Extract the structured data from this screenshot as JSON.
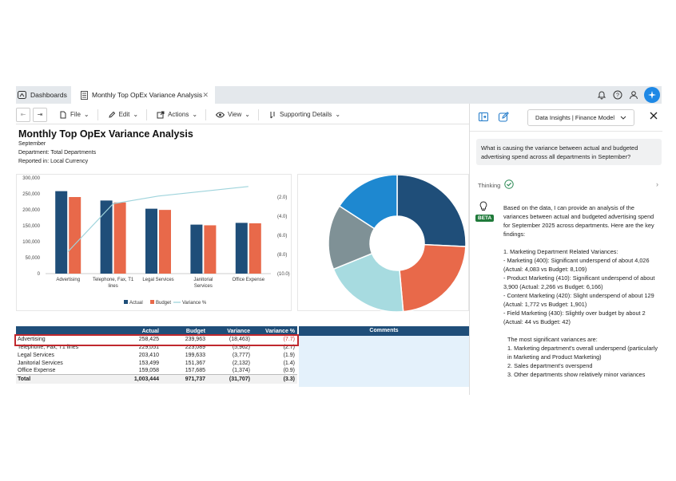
{
  "tabs": {
    "dashboards": "Dashboards",
    "active": "Monthly Top OpEx Variance Analysis"
  },
  "toolbar": {
    "file": "File",
    "edit": "Edit",
    "actions": "Actions",
    "view": "View",
    "supporting": "Supporting Details"
  },
  "report": {
    "title": "Monthly Top OpEx Variance Analysis",
    "period": "September",
    "department": "Department: Total Departments",
    "currency": "Reported in: Local Currency"
  },
  "chart_data": [
    {
      "type": "bar",
      "categories": [
        "Advertising",
        "Telephone, Fax, T1 lines",
        "Legal Services",
        "Janitorial Services",
        "Office Expense"
      ],
      "series": [
        {
          "name": "Actual",
          "values": [
            258425,
            229051,
            203410,
            153499,
            159058
          ],
          "color": "#1f4e79"
        },
        {
          "name": "Budget",
          "values": [
            239963,
            223089,
            199633,
            151367,
            157685
          ],
          "color": "#e8694a"
        },
        {
          "name": "Variance %",
          "type": "line",
          "axis": "right",
          "values": [
            -7.7,
            -2.7,
            -1.9,
            -1.4,
            -0.9
          ],
          "color": "#9fd4dc"
        }
      ],
      "y_ticks": [
        "300,000",
        "250,000",
        "200,000",
        "150,000",
        "100,000",
        "50,000",
        "0"
      ],
      "ylim": [
        0,
        300000
      ],
      "y2_ticks": [
        "(2.0)",
        "(4.0)",
        "(6.0)",
        "(8.0)",
        "(10.0)"
      ],
      "y2lim": [
        0,
        -10
      ],
      "legend_position": "bottom"
    },
    {
      "type": "pie",
      "donut": true,
      "values": [
        258425,
        229051,
        203410,
        153499,
        159058
      ],
      "colors": [
        "#1f4e79",
        "#e8694a",
        "#a7dbe0",
        "#7f9196",
        "#1e88d0"
      ]
    }
  ],
  "table": {
    "headers": [
      "",
      "Actual",
      "Budget",
      "Variance",
      "Variance %"
    ],
    "rows": [
      {
        "name": "Advertising",
        "actual": "258,425",
        "budget": "239,963",
        "variance": "(18,463)",
        "pct": "(7.7)"
      },
      {
        "name": "Telephone, Fax, T1 lines",
        "actual": "229,051",
        "budget": "223,089",
        "variance": "(5,962)",
        "pct": "(2.7)"
      },
      {
        "name": "Legal Services",
        "actual": "203,410",
        "budget": "199,633",
        "variance": "(3,777)",
        "pct": "(1.9)"
      },
      {
        "name": "Janitorial Services",
        "actual": "153,499",
        "budget": "151,367",
        "variance": "(2,132)",
        "pct": "(1.4)"
      },
      {
        "name": "Office Expense",
        "actual": "159,058",
        "budget": "157,685",
        "variance": "(1,374)",
        "pct": "(0.9)"
      }
    ],
    "total": {
      "name": "Total",
      "actual": "1,003,444",
      "budget": "971,737",
      "variance": "(31,707)",
      "pct": "(3.3)"
    },
    "comments_header": "Comments"
  },
  "panel": {
    "model_select": "Data Insights | Finance Model",
    "query": "What is causing the variance between actual and budgeted advertising spend across all departments in September?",
    "thinking": "Thinking",
    "beta": "BETA",
    "answer": {
      "intro": "Based on the data, I can provide an analysis of the variances between actual and budgeted advertising spend for September 2025 across departments. Here are the key findings:",
      "heading": "1. Marketing Department Related Variances:",
      "items": [
        "- Marketing (400): Significant underspend of about 4,026 (Actual: 4,083 vs Budget: 8,109)",
        "- Product Marketing (410): Significant underspend of about 3,900 (Actual: 2,266 vs Budget: 6,166)",
        "- Content Marketing (420): Slight underspend of about 129 (Actual: 1,772 vs Budget: 1,901)",
        "- Field Marketing (430): Slightly over budget by about 2 (Actual: 44 vs Budget: 42)"
      ],
      "summary_heading": "The most significant variances are:",
      "summary": [
        "1. Marketing department's overall underspend (particularly in Marketing and Product Marketing)",
        "2. Sales department's overspend",
        "3. Other departments show relatively minor variances"
      ]
    }
  }
}
